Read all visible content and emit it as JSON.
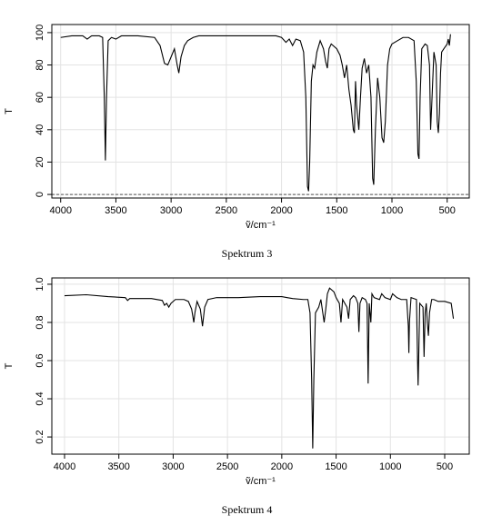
{
  "chart_data": [
    {
      "type": "line",
      "title": "Spektrum 3",
      "xlabel": "ṽ/cm⁻¹",
      "ylabel": "T",
      "color": "#000000",
      "grid": true,
      "hline": 0,
      "xlim": [
        4080,
        300
      ],
      "ylim": [
        -2.2,
        105
      ],
      "xticks": [
        4000,
        3500,
        3000,
        2500,
        2000,
        1500,
        1000,
        500
      ],
      "yticks": [
        0,
        20,
        40,
        60,
        80,
        100
      ],
      "x": [
        4000,
        3900,
        3800,
        3760,
        3720,
        3650,
        3620,
        3605,
        3595,
        3585,
        3570,
        3540,
        3500,
        3450,
        3300,
        3150,
        3100,
        3060,
        3030,
        3000,
        2970,
        2945,
        2930,
        2910,
        2880,
        2850,
        2800,
        2750,
        2600,
        2400,
        2200,
        2050,
        2000,
        1960,
        1930,
        1900,
        1870,
        1830,
        1800,
        1780,
        1765,
        1755,
        1745,
        1730,
        1715,
        1700,
        1680,
        1650,
        1620,
        1600,
        1585,
        1570,
        1550,
        1500,
        1470,
        1450,
        1430,
        1410,
        1390,
        1370,
        1350,
        1340,
        1330,
        1320,
        1300,
        1285,
        1270,
        1250,
        1230,
        1210,
        1190,
        1175,
        1165,
        1150,
        1130,
        1110,
        1090,
        1075,
        1060,
        1040,
        1020,
        1000,
        950,
        900,
        850,
        800,
        780,
        765,
        755,
        745,
        730,
        700,
        680,
        660,
        650,
        640,
        620,
        600,
        590,
        580,
        570,
        560,
        550,
        530,
        510,
        500,
        490,
        480,
        470
      ],
      "values": [
        97,
        98,
        98,
        96,
        98,
        98,
        97,
        60,
        21,
        60,
        95,
        97,
        96,
        98,
        98,
        97,
        92,
        81,
        80,
        85,
        90,
        80,
        75,
        85,
        92,
        95,
        97,
        98,
        98,
        98,
        98,
        98,
        97,
        94,
        96,
        92,
        96,
        95,
        88,
        60,
        5,
        2,
        20,
        70,
        80,
        78,
        88,
        95,
        90,
        82,
        78,
        90,
        93,
        90,
        86,
        80,
        72,
        80,
        65,
        55,
        40,
        38,
        70,
        55,
        40,
        60,
        78,
        84,
        75,
        80,
        60,
        10,
        6,
        40,
        72,
        60,
        35,
        32,
        45,
        80,
        90,
        93,
        95,
        97,
        97,
        95,
        70,
        25,
        22,
        60,
        90,
        93,
        92,
        80,
        40,
        55,
        88,
        80,
        45,
        38,
        50,
        75,
        88,
        90,
        92,
        93,
        96,
        92,
        99
      ]
    },
    {
      "type": "line",
      "title": "Spektrum 4",
      "xlabel": "ṽ/cm⁻¹",
      "ylabel": "T",
      "color": "#000000",
      "grid": true,
      "xlim": [
        4117,
        274
      ],
      "ylim": [
        0.11,
        1.033
      ],
      "xticks": [
        4000,
        3500,
        3000,
        2500,
        2000,
        1500,
        1000,
        500
      ],
      "yticks": [
        0.2,
        0.4,
        0.6,
        0.8,
        {
          "value": 1,
          "label": "1.0"
        }
      ],
      "x": [
        4000,
        3800,
        3600,
        3440,
        3420,
        3400,
        3200,
        3100,
        3080,
        3060,
        3040,
        3020,
        2980,
        2900,
        2860,
        2830,
        2810,
        2800,
        2780,
        2750,
        2730,
        2710,
        2680,
        2600,
        2400,
        2200,
        2000,
        1950,
        1900,
        1800,
        1760,
        1740,
        1725,
        1715,
        1705,
        1690,
        1660,
        1640,
        1620,
        1610,
        1595,
        1580,
        1560,
        1520,
        1500,
        1470,
        1455,
        1440,
        1400,
        1385,
        1370,
        1340,
        1320,
        1300,
        1290,
        1280,
        1260,
        1230,
        1215,
        1205,
        1195,
        1180,
        1170,
        1150,
        1100,
        1080,
        1050,
        1000,
        980,
        940,
        900,
        850,
        835,
        830,
        825,
        810,
        760,
        750,
        745,
        740,
        730,
        700,
        690,
        680,
        670,
        660,
        650,
        640,
        620,
        600,
        560,
        500,
        440,
        420
      ],
      "values": [
        0.94,
        0.945,
        0.935,
        0.93,
        0.915,
        0.925,
        0.925,
        0.915,
        0.89,
        0.9,
        0.88,
        0.9,
        0.92,
        0.92,
        0.91,
        0.87,
        0.8,
        0.85,
        0.91,
        0.87,
        0.78,
        0.88,
        0.92,
        0.93,
        0.93,
        0.935,
        0.935,
        0.93,
        0.925,
        0.92,
        0.92,
        0.85,
        0.5,
        0.14,
        0.5,
        0.85,
        0.88,
        0.92,
        0.84,
        0.8,
        0.87,
        0.95,
        0.98,
        0.96,
        0.93,
        0.9,
        0.8,
        0.92,
        0.88,
        0.82,
        0.92,
        0.94,
        0.93,
        0.9,
        0.75,
        0.9,
        0.93,
        0.92,
        0.9,
        0.48,
        0.9,
        0.8,
        0.95,
        0.93,
        0.92,
        0.95,
        0.93,
        0.92,
        0.95,
        0.93,
        0.92,
        0.92,
        0.78,
        0.64,
        0.8,
        0.93,
        0.92,
        0.6,
        0.47,
        0.6,
        0.9,
        0.88,
        0.62,
        0.85,
        0.9,
        0.8,
        0.73,
        0.85,
        0.92,
        0.92,
        0.91,
        0.91,
        0.9,
        0.82
      ]
    }
  ]
}
